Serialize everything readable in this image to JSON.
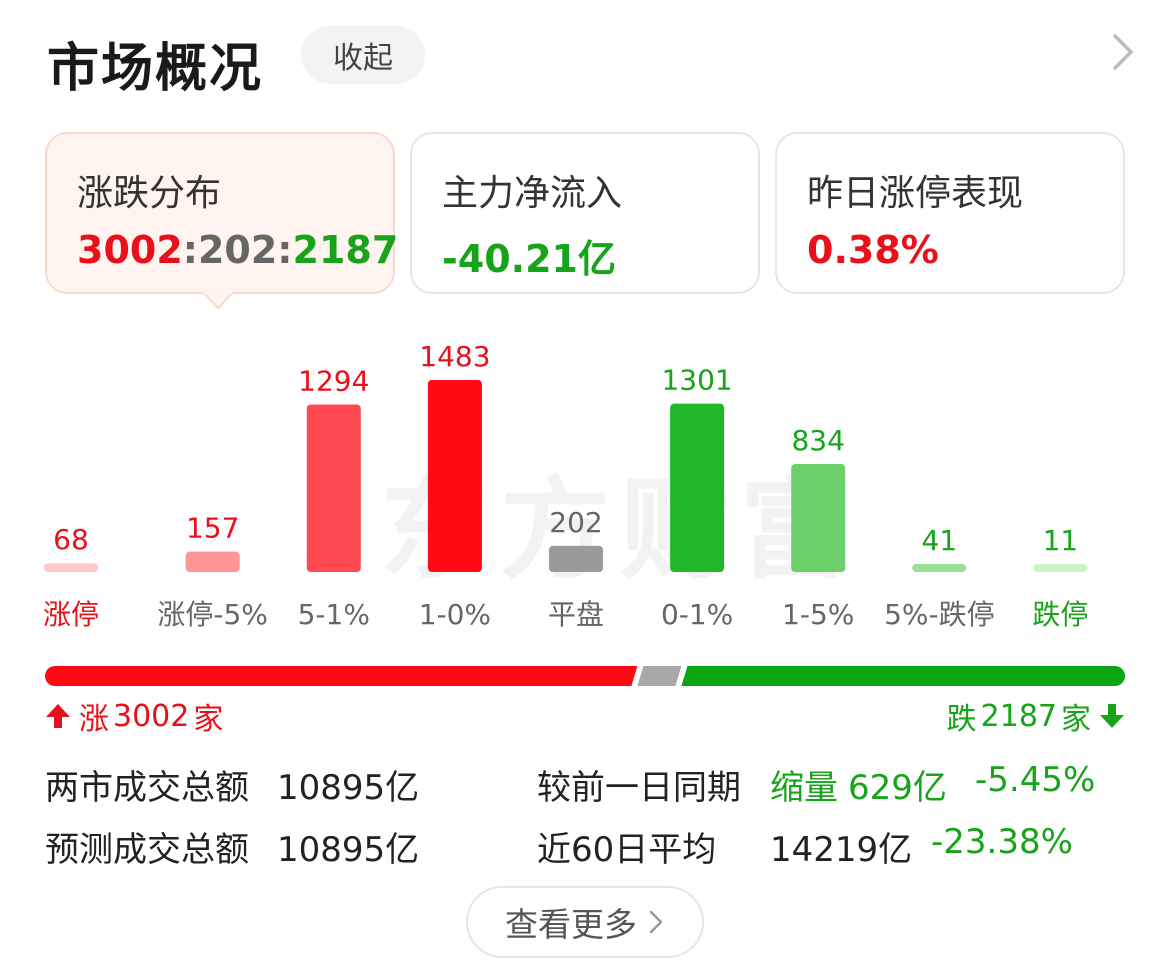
{
  "header": {
    "title": "市场概况",
    "collapse_label": "收起"
  },
  "cards": [
    {
      "label": "涨跌分布",
      "up": "3002",
      "flat": "202",
      "down": "2187",
      "sep": ":"
    },
    {
      "label": "主力净流入",
      "value": "-40.21亿"
    },
    {
      "label": "昨日涨停表现",
      "value": "0.38%"
    }
  ],
  "watermark": "东方财富",
  "chart_data": {
    "type": "bar",
    "categories": [
      "涨停",
      "涨停-5%",
      "5-1%",
      "1-0%",
      "平盘",
      "0-1%",
      "1-5%",
      "5%-跌停",
      "跌停"
    ],
    "values": [
      68,
      157,
      1294,
      1483,
      202,
      1301,
      834,
      41,
      11
    ],
    "value_labels": [
      "68",
      "157",
      "1294",
      "1483",
      "202",
      "1301",
      "834",
      "41",
      "11"
    ],
    "colors": [
      "#ffc9c9",
      "#ff9595",
      "#ff4a52",
      "#ff0a14",
      "#9a9a9a",
      "#20b82a",
      "#6ccf6a",
      "#9adf96",
      "#cdf1c9"
    ],
    "label_colors": [
      "#e8101a",
      "#e8101a",
      "#e8101a",
      "#e8101a",
      "#666666",
      "#17a41a",
      "#17a41a",
      "#17a41a",
      "#17a41a"
    ],
    "category_colors": [
      "#e8101a",
      "#666666",
      "#666666",
      "#666666",
      "#666666",
      "#666666",
      "#666666",
      "#666666",
      "#17a41a"
    ],
    "ylim": [
      0,
      1483
    ]
  },
  "ratio": {
    "up": 3002,
    "flat": 202,
    "down": 2187,
    "up_color": "#ff0a14",
    "flat_color": "#a8a8a8",
    "down_color": "#0aa614"
  },
  "totals": {
    "up_label": "涨",
    "up_value": "3002",
    "up_unit": "家",
    "down_label": "跌",
    "down_value": "2187",
    "down_unit": "家"
  },
  "stats": {
    "row1": {
      "label": "两市成交总额",
      "value": "10895亿",
      "cmp_label": "较前一日同期",
      "cmp_word": "缩量",
      "cmp_value": "629亿",
      "cmp_pct": "-5.45%"
    },
    "row2": {
      "label": "预测成交总额",
      "value": "10895亿",
      "cmp_label": "近60日平均",
      "cmp_value": "14219亿",
      "cmp_pct": "-23.38%"
    }
  },
  "more_label": "查看更多",
  "icons": {
    "chevron": "chevron-right-icon",
    "up_arrow": "arrow-up-icon",
    "down_arrow": "arrow-down-icon"
  }
}
